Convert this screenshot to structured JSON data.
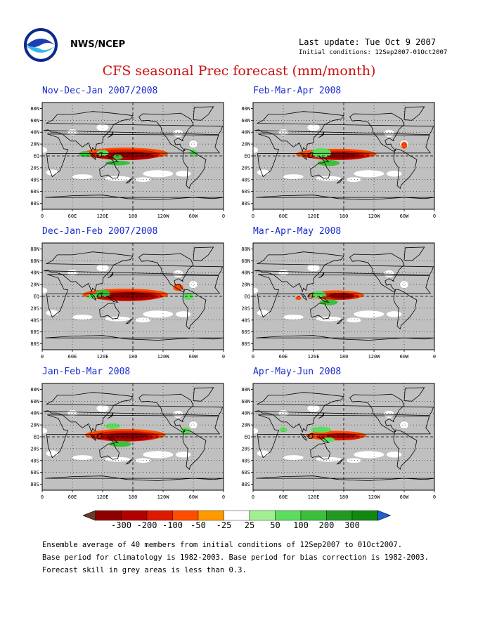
{
  "header": {
    "agency": "NWS/NCEP",
    "last_update": "Last update: Tue Oct 9 2007",
    "initial_conditions": "Initial conditions: 12Sep2007-01Oct2007",
    "main_title": "CFS seasonal Prec forecast (mm/month)"
  },
  "chart_data": [
    {
      "type": "heatmap",
      "title": "Nov-Dec-Jan 2007/2008",
      "y_ticks": [
        "80N",
        "60N",
        "40N",
        "20N",
        "EQ",
        "20S",
        "40S",
        "60S",
        "80S"
      ],
      "x_ticks": [
        "0",
        "60E",
        "120E",
        "180",
        "120W",
        "60W",
        "0"
      ],
      "grid": true
    },
    {
      "type": "heatmap",
      "title": "Feb-Mar-Apr 2008",
      "y_ticks": [
        "80N",
        "60N",
        "40N",
        "20N",
        "EQ",
        "20S",
        "40S",
        "60S",
        "80S"
      ],
      "x_ticks": [
        "0",
        "60E",
        "120E",
        "180",
        "120W",
        "60W",
        "0"
      ],
      "grid": true
    },
    {
      "type": "heatmap",
      "title": "Dec-Jan-Feb 2007/2008",
      "y_ticks": [
        "80N",
        "60N",
        "40N",
        "20N",
        "EQ",
        "20S",
        "40S",
        "60S",
        "80S"
      ],
      "x_ticks": [
        "0",
        "60E",
        "120E",
        "180",
        "120W",
        "60W",
        "0"
      ],
      "grid": true
    },
    {
      "type": "heatmap",
      "title": "Mar-Apr-May 2008",
      "y_ticks": [
        "80N",
        "60N",
        "40N",
        "20N",
        "EQ",
        "20S",
        "40S",
        "60S",
        "80S"
      ],
      "x_ticks": [
        "0",
        "60E",
        "120E",
        "180",
        "120W",
        "60W",
        "0"
      ],
      "grid": true
    },
    {
      "type": "heatmap",
      "title": "Jan-Feb-Mar 2008",
      "y_ticks": [
        "80N",
        "60N",
        "40N",
        "20N",
        "EQ",
        "20S",
        "40S",
        "60S",
        "80S"
      ],
      "x_ticks": [
        "0",
        "60E",
        "120E",
        "180",
        "120W",
        "60W",
        "0"
      ],
      "grid": true
    },
    {
      "type": "heatmap",
      "title": "Apr-May-Jun 2008",
      "y_ticks": [
        "80N",
        "60N",
        "40N",
        "20N",
        "EQ",
        "20S",
        "40S",
        "60S",
        "80S"
      ],
      "x_ticks": [
        "0",
        "60E",
        "120E",
        "180",
        "120W",
        "60W",
        "0"
      ],
      "grid": true
    }
  ],
  "colorbar": {
    "labels": [
      "-300",
      "-200",
      "-100",
      "-50",
      "-25",
      "25",
      "50",
      "100",
      "200",
      "300"
    ],
    "colors": [
      "#6b3a2a",
      "#8c0000",
      "#b30000",
      "#dd1a00",
      "#ff4d00",
      "#ff9900",
      "#ffffff",
      "#a0f090",
      "#5ddd5d",
      "#3cbf3c",
      "#229922",
      "#118811",
      "#1e5fd8"
    ]
  },
  "colors": {
    "low_skill_grey": "#c0c0c0",
    "title_red": "#cc1010",
    "panel_title_blue": "#1a2ccc"
  },
  "footer": {
    "line1": "Ensemble average of 40 members from initial conditions of 12Sep2007 to 01Oct2007.",
    "line2": "Base period for climatology is 1982-2003. Base period for bias correction is 1982-2003.",
    "line3": "Forecast skill in grey areas is less than 0.3."
  }
}
